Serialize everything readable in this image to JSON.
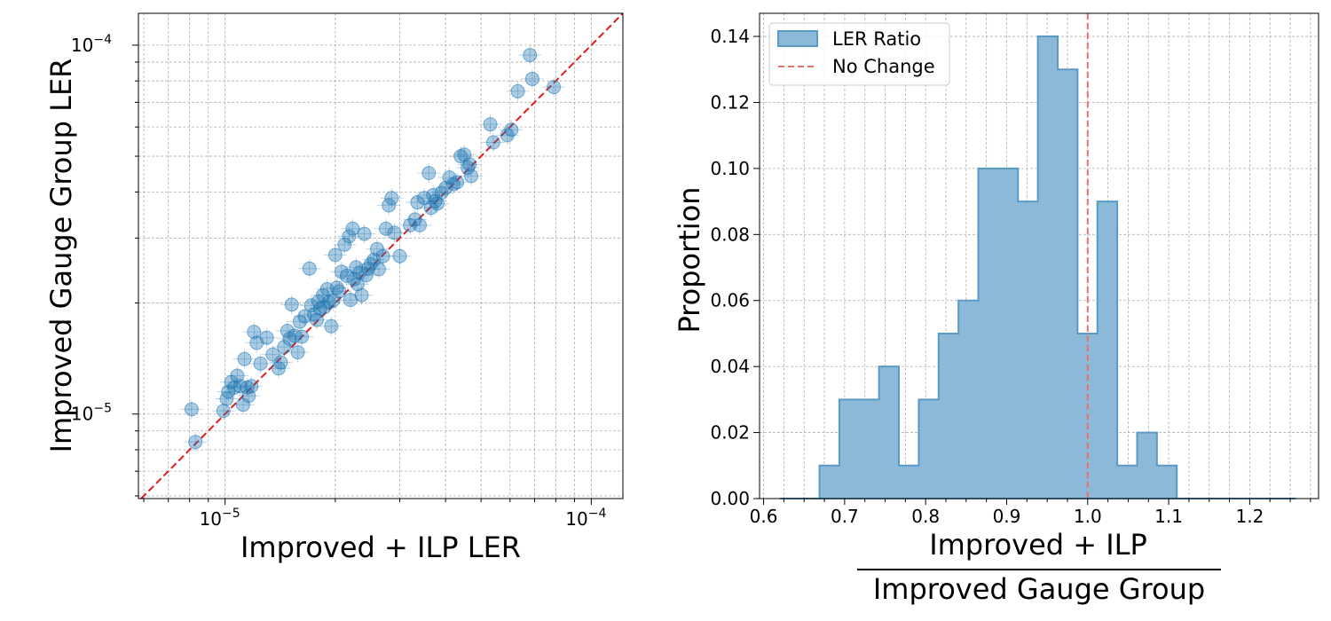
{
  "chart_data": [
    {
      "type": "scatter",
      "xlabel": "Improved + ILP LER",
      "ylabel": "Improved Gauge Group LER",
      "xscale": "log",
      "yscale": "log",
      "xlim": [
        5.8e-06,
        0.000122
      ],
      "ylim": [
        5.9e-06,
        0.000122
      ],
      "x_major_ticks": [
        1e-05,
        0.0001
      ],
      "y_major_ticks": [
        1e-05,
        0.0001
      ],
      "x_tick_labels": [
        "10^-5",
        "10^-4"
      ],
      "y_tick_labels": [
        "10^-5",
        "10^-4"
      ],
      "grid": true,
      "reference_line": "y = x",
      "reference_color": "#e41a1c",
      "marker_color": "#1f77b4",
      "points": [
        [
          8.1e-06,
          1.03e-05
        ],
        [
          8.3e-06,
          8.4e-06
        ],
        [
          9.9e-06,
          1.02e-05
        ],
        [
          1.01e-05,
          1.1e-05
        ],
        [
          1.02e-05,
          1.15e-05
        ],
        [
          1.04e-05,
          1.22e-05
        ],
        [
          1.06e-05,
          1.18e-05
        ],
        [
          1.08e-05,
          1.27e-05
        ],
        [
          1.1e-05,
          1.19e-05
        ],
        [
          1.12e-05,
          1.06e-05
        ],
        [
          1.13e-05,
          1.41e-05
        ],
        [
          1.15e-05,
          1.18e-05
        ],
        [
          1.16e-05,
          1.12e-05
        ],
        [
          1.18e-05,
          1.19e-05
        ],
        [
          1.2e-05,
          1.67e-05
        ],
        [
          1.22e-05,
          1.56e-05
        ],
        [
          1.25e-05,
          1.37e-05
        ],
        [
          1.3e-05,
          1.61e-05
        ],
        [
          1.35e-05,
          1.45e-05
        ],
        [
          1.4e-05,
          1.33e-05
        ],
        [
          1.42e-05,
          1.38e-05
        ],
        [
          1.45e-05,
          1.52e-05
        ],
        [
          1.48e-05,
          1.68e-05
        ],
        [
          1.5e-05,
          1.6e-05
        ],
        [
          1.52e-05,
          1.98e-05
        ],
        [
          1.55e-05,
          1.63e-05
        ],
        [
          1.58e-05,
          1.47e-05
        ],
        [
          1.6e-05,
          1.78e-05
        ],
        [
          1.62e-05,
          1.62e-05
        ],
        [
          1.65e-05,
          1.84e-05
        ],
        [
          1.7e-05,
          2.48e-05
        ],
        [
          1.72e-05,
          1.97e-05
        ],
        [
          1.75e-05,
          1.86e-05
        ],
        [
          1.78e-05,
          1.8e-05
        ],
        [
          1.8e-05,
          2.02e-05
        ],
        [
          1.82e-05,
          1.93e-05
        ],
        [
          1.85e-05,
          2.1e-05
        ],
        [
          1.87e-05,
          1.95e-05
        ],
        [
          1.9e-05,
          2.18e-05
        ],
        [
          1.92e-05,
          2.01e-05
        ],
        [
          1.95e-05,
          1.73e-05
        ],
        [
          1.97e-05,
          2.03e-05
        ],
        [
          2e-05,
          2.7e-05
        ],
        [
          2.02e-05,
          2.2e-05
        ],
        [
          2.05e-05,
          2.15e-05
        ],
        [
          2.08e-05,
          2.43e-05
        ],
        [
          2.12e-05,
          2.88e-05
        ],
        [
          2.15e-05,
          2.37e-05
        ],
        [
          2.18e-05,
          3.03e-05
        ],
        [
          2.2e-05,
          2.04e-05
        ],
        [
          2.23e-05,
          3.18e-05
        ],
        [
          2.25e-05,
          2.32e-05
        ],
        [
          2.28e-05,
          2.5e-05
        ],
        [
          2.3e-05,
          2.25e-05
        ],
        [
          2.33e-05,
          2.42e-05
        ],
        [
          2.36e-05,
          2.1e-05
        ],
        [
          2.4e-05,
          3.08e-05
        ],
        [
          2.43e-05,
          2.38e-05
        ],
        [
          2.46e-05,
          2.48e-05
        ],
        [
          2.5e-05,
          2.55e-05
        ],
        [
          2.55e-05,
          2.62e-05
        ],
        [
          2.6e-05,
          2.8e-05
        ],
        [
          2.63e-05,
          2.47e-05
        ],
        [
          2.7e-05,
          2.68e-05
        ],
        [
          2.75e-05,
          3.18e-05
        ],
        [
          2.8e-05,
          3.68e-05
        ],
        [
          2.85e-05,
          3.85e-05
        ],
        [
          2.9e-05,
          3.1e-05
        ],
        [
          3e-05,
          2.68e-05
        ],
        [
          3.2e-05,
          3.25e-05
        ],
        [
          3.3e-05,
          3.37e-05
        ],
        [
          3.35e-05,
          3.75e-05
        ],
        [
          3.4e-05,
          3.25e-05
        ],
        [
          3.5e-05,
          3.85e-05
        ],
        [
          3.6e-05,
          4.5e-05
        ],
        [
          3.65e-05,
          3.62e-05
        ],
        [
          3.7e-05,
          3.92e-05
        ],
        [
          3.75e-05,
          3.78e-05
        ],
        [
          3.8e-05,
          3.72e-05
        ],
        [
          3.9e-05,
          3.98e-05
        ],
        [
          4e-05,
          4.1e-05
        ],
        [
          4.1e-05,
          4.38e-05
        ],
        [
          4.2e-05,
          4.2e-05
        ],
        [
          4.3e-05,
          4.25e-05
        ],
        [
          4.4e-05,
          5e-05
        ],
        [
          4.5e-05,
          5.05e-05
        ],
        [
          4.6e-05,
          4.65e-05
        ],
        [
          4.65e-05,
          4.75e-05
        ],
        [
          4.7e-05,
          4.42e-05
        ],
        [
          5.3e-05,
          6.1e-05
        ],
        [
          5.4e-05,
          5.45e-05
        ],
        [
          5.9e-05,
          5.7e-05
        ],
        [
          6.05e-05,
          5.9e-05
        ],
        [
          6.3e-05,
          7.5e-05
        ],
        [
          6.8e-05,
          9.4e-05
        ],
        [
          6.9e-05,
          8.1e-05
        ],
        [
          7.9e-05,
          7.7e-05
        ]
      ]
    },
    {
      "type": "bar",
      "histogram": true,
      "xlabel": "Improved + ILP",
      "xlabel_denominator": "Improved Gauge Group",
      "ylabel": "Proportion",
      "xlim": [
        0.595,
        1.285
      ],
      "ylim": [
        0,
        0.147
      ],
      "x_ticks": [
        0.6,
        0.7,
        0.8,
        0.9,
        1.0,
        1.1,
        1.2
      ],
      "x_tick_labels": [
        "0.6",
        "0.7",
        "0.8",
        "0.9",
        "1.0",
        "1.1",
        "1.2"
      ],
      "y_ticks": [
        0,
        0.02,
        0.04,
        0.06,
        0.08,
        0.1,
        0.12,
        0.14
      ],
      "y_tick_labels": [
        "0.00",
        "0.02",
        "0.04",
        "0.06",
        "0.08",
        "0.10",
        "0.12",
        "0.14"
      ],
      "grid": true,
      "legend_position": "top-left",
      "fill_color": "#8db9d8",
      "edge_color": "#5b9ac4",
      "reference_color": "#e8706f",
      "series": [
        {
          "name": "LER Ratio",
          "bin_edges": [
            0.62,
            0.6445,
            0.669,
            0.6935,
            0.718,
            0.7425,
            0.767,
            0.7915,
            0.816,
            0.8405,
            0.865,
            0.8895,
            0.914,
            0.9385,
            0.963,
            0.9875,
            1.012,
            1.0365,
            1.061,
            1.0855,
            1.11,
            1.1345,
            1.159,
            1.1835,
            1.208,
            1.2325,
            1.257
          ],
          "values": [
            0,
            0,
            0.01,
            0.03,
            0.03,
            0.04,
            0.01,
            0.03,
            0.05,
            0.06,
            0.1,
            0.1,
            0.09,
            0.14,
            0.13,
            0.05,
            0.09,
            0.01,
            0.02,
            0.01,
            0,
            0,
            0,
            0,
            0,
            0
          ]
        },
        {
          "name": "No Change",
          "x": 1.0
        }
      ]
    }
  ]
}
